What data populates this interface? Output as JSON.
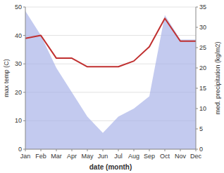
{
  "chart_data": {
    "type": "line",
    "xlabel": "date (month)",
    "ylabel": "max temp (C)",
    "y2label": "med. precipitation (kg/m2)",
    "categories": [
      "Jan",
      "Feb",
      "Mar",
      "Apr",
      "May",
      "Jun",
      "Jul",
      "Aug",
      "Sep",
      "Oct",
      "Nov",
      "Dec"
    ],
    "series": [
      {
        "type": "area",
        "axis": "y2",
        "color": "#aab4e8",
        "values": [
          34,
          28,
          20,
          14,
          8,
          4,
          8,
          10,
          13,
          33,
          27,
          27
        ]
      },
      {
        "type": "line",
        "color": "#c03030",
        "values": [
          39,
          40,
          32,
          32,
          29,
          29,
          29,
          31,
          36,
          46,
          38,
          38
        ]
      }
    ],
    "ylim": [
      0,
      50
    ],
    "yticks": [
      0,
      10,
      20,
      30,
      40,
      50
    ],
    "y2lim": [
      0,
      35
    ],
    "y2ticks": [
      0,
      5,
      10,
      15,
      20,
      25,
      30,
      35
    ],
    "grid": true
  }
}
